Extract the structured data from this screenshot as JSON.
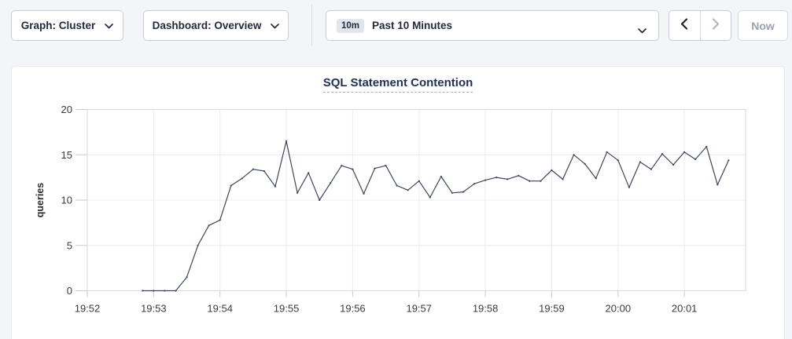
{
  "toolbar": {
    "graph_dropdown": {
      "label": "Graph: Cluster"
    },
    "dashboard_dropdown": {
      "label": "Dashboard: Overview"
    },
    "time_picker": {
      "badge": "10m",
      "label": "Past 10 Minutes"
    },
    "nav": {
      "prev_enabled": true,
      "next_enabled": false
    },
    "now_button": {
      "label": "Now",
      "enabled": false
    }
  },
  "chart": {
    "title": "SQL Statement Contention"
  },
  "colors": {
    "page_bg": "#f4f5f9",
    "panel_bg": "#ffffff",
    "line": "#3d465f",
    "title_text": "#223059",
    "button_text": "#1f2940",
    "disabled_text": "#9aa2b2",
    "gridline": "#ececf0",
    "plot_border": "#d9d9de"
  },
  "chart_data": {
    "type": "line",
    "title": "SQL Statement Contention",
    "xlabel": "",
    "ylabel": "queries",
    "ylim": [
      0,
      20
    ],
    "y_ticks": [
      0,
      5,
      10,
      15,
      20
    ],
    "x_ticks": [
      "19:52",
      "19:53",
      "19:54",
      "19:55",
      "19:56",
      "19:57",
      "19:58",
      "19:59",
      "20:00",
      "20:01"
    ],
    "x_tick_interval_seconds": 60,
    "grid": true,
    "legend": "none",
    "start_time": "19:52:50",
    "start_offset_seconds": 50,
    "interval_seconds": 10,
    "series": [
      {
        "name": "queries",
        "color": "#3d465f",
        "values": [
          0,
          0,
          0,
          0,
          1.5,
          5,
          7.2,
          7.8,
          11.6,
          12.4,
          13.4,
          13.2,
          11.5,
          16.5,
          10.8,
          13,
          10,
          11.9,
          13.8,
          13.4,
          10.7,
          13.5,
          13.8,
          11.6,
          11.1,
          12.1,
          10.3,
          12.6,
          10.8,
          10.9,
          11.8,
          12.2,
          12.5,
          12.3,
          12.7,
          12.1,
          12.1,
          13.3,
          12.3,
          15,
          14,
          12.4,
          15.3,
          14.4,
          11.4,
          14.2,
          13.4,
          15.1,
          13.9,
          15.3,
          14.5,
          15.9,
          11.7,
          14.4
        ]
      }
    ]
  }
}
